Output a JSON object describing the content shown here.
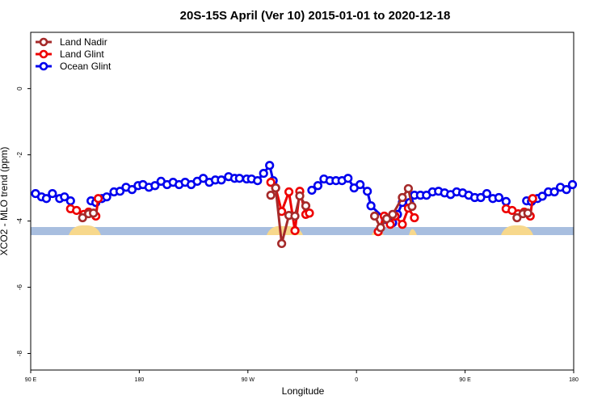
{
  "chart_data": {
    "type": "line",
    "title": "20S-15S April (Ver 10)   2015-01-01 to 2020-12-18",
    "xlabel": "Longitude",
    "ylabel": "XCO2 - MLO trend (ppm)",
    "xlim": [
      90,
      540
    ],
    "ylim": [
      -8.5,
      1.7
    ],
    "xticks": [
      {
        "value": 90,
        "label": "90 E"
      },
      180,
      {
        "value": 270,
        "label": "90 W"
      },
      {
        "value": 360,
        "label": "0"
      },
      {
        "value": 450,
        "label": "90 E"
      },
      {
        "value": 540,
        "label": "180"
      }
    ],
    "yticks": [
      0,
      -2,
      -4,
      -6,
      -8
    ],
    "legend": "top-left",
    "series": [
      {
        "name": "Land Nadir",
        "color": "#a52a2a",
        "x": [
          133,
          138,
          142,
          null,
          289,
          293,
          298,
          304,
          309,
          313,
          318,
          null,
          375,
          380,
          385,
          390,
          398,
          403,
          406,
          null,
          493,
          498,
          502
        ],
        "values": [
          -3.9,
          -3.78,
          -3.76,
          null,
          -3.22,
          -3.0,
          -4.68,
          -3.83,
          -3.85,
          -3.24,
          -3.54,
          null,
          -3.85,
          -4.2,
          -3.93,
          -3.8,
          -3.29,
          -3.02,
          -3.56,
          null,
          -3.9,
          -3.78,
          -3.76
        ]
      },
      {
        "name": "Land Glint",
        "color": "#ee0000",
        "x": [
          123,
          128,
          134,
          138,
          144,
          146,
          null,
          289,
          293,
          298,
          304,
          309,
          313,
          318,
          321,
          null,
          378,
          383,
          388,
          392,
          398,
          403,
          408,
          null,
          484,
          489,
          494,
          499,
          504,
          506
        ],
        "values": [
          -3.63,
          -3.68,
          -3.8,
          -3.73,
          -3.85,
          -3.32,
          null,
          -2.83,
          -3.0,
          -3.71,
          -3.12,
          -4.29,
          -3.1,
          -3.8,
          -3.76,
          null,
          -4.32,
          -3.85,
          -4.1,
          -3.85,
          -4.1,
          -3.61,
          -3.9,
          null,
          -3.63,
          -3.68,
          -3.78,
          -3.73,
          -3.85,
          -3.32
        ]
      },
      {
        "name": "Ocean Glint",
        "color": "#0000ee",
        "x": [
          94,
          99,
          103,
          108,
          114,
          118,
          123,
          null,
          140,
          144,
          149,
          153,
          159,
          164,
          169,
          174,
          179,
          183,
          188,
          193,
          198,
          203,
          208,
          213,
          218,
          223,
          228,
          233,
          238,
          243,
          248,
          254,
          259,
          263,
          269,
          273,
          278,
          283,
          288,
          291,
          null,
          323,
          328,
          333,
          338,
          343,
          348,
          353,
          358,
          363,
          369,
          372,
          384,
          390,
          394,
          398,
          404,
          408,
          413,
          418,
          423,
          428,
          433,
          438,
          443,
          448,
          453,
          458,
          463,
          468,
          473,
          478,
          484,
          null,
          501,
          505,
          510,
          514,
          519,
          524,
          529,
          534,
          539
        ],
        "values": [
          -3.17,
          -3.27,
          -3.32,
          -3.17,
          -3.32,
          -3.27,
          -3.39,
          null,
          -3.39,
          -3.44,
          -3.32,
          -3.27,
          -3.12,
          -3.1,
          -2.98,
          -3.05,
          -2.93,
          -2.9,
          -2.98,
          -2.93,
          -2.8,
          -2.9,
          -2.83,
          -2.9,
          -2.83,
          -2.9,
          -2.8,
          -2.71,
          -2.83,
          -2.76,
          -2.76,
          -2.66,
          -2.71,
          -2.71,
          -2.73,
          -2.73,
          -2.78,
          -2.56,
          -2.32,
          -2.78,
          null,
          -3.07,
          -2.93,
          -2.73,
          -2.78,
          -2.78,
          -2.78,
          -2.71,
          -3.0,
          -2.9,
          -3.1,
          -3.54,
          -3.95,
          -4.05,
          -3.8,
          -3.44,
          -3.44,
          -3.22,
          -3.22,
          -3.22,
          -3.12,
          -3.1,
          -3.15,
          -3.2,
          -3.12,
          -3.15,
          -3.22,
          -3.29,
          -3.29,
          -3.17,
          -3.32,
          -3.29,
          -3.41,
          null,
          -3.39,
          -3.41,
          -3.32,
          -3.25,
          -3.12,
          -3.12,
          -2.98,
          -3.05,
          -2.9
        ]
      }
    ]
  }
}
